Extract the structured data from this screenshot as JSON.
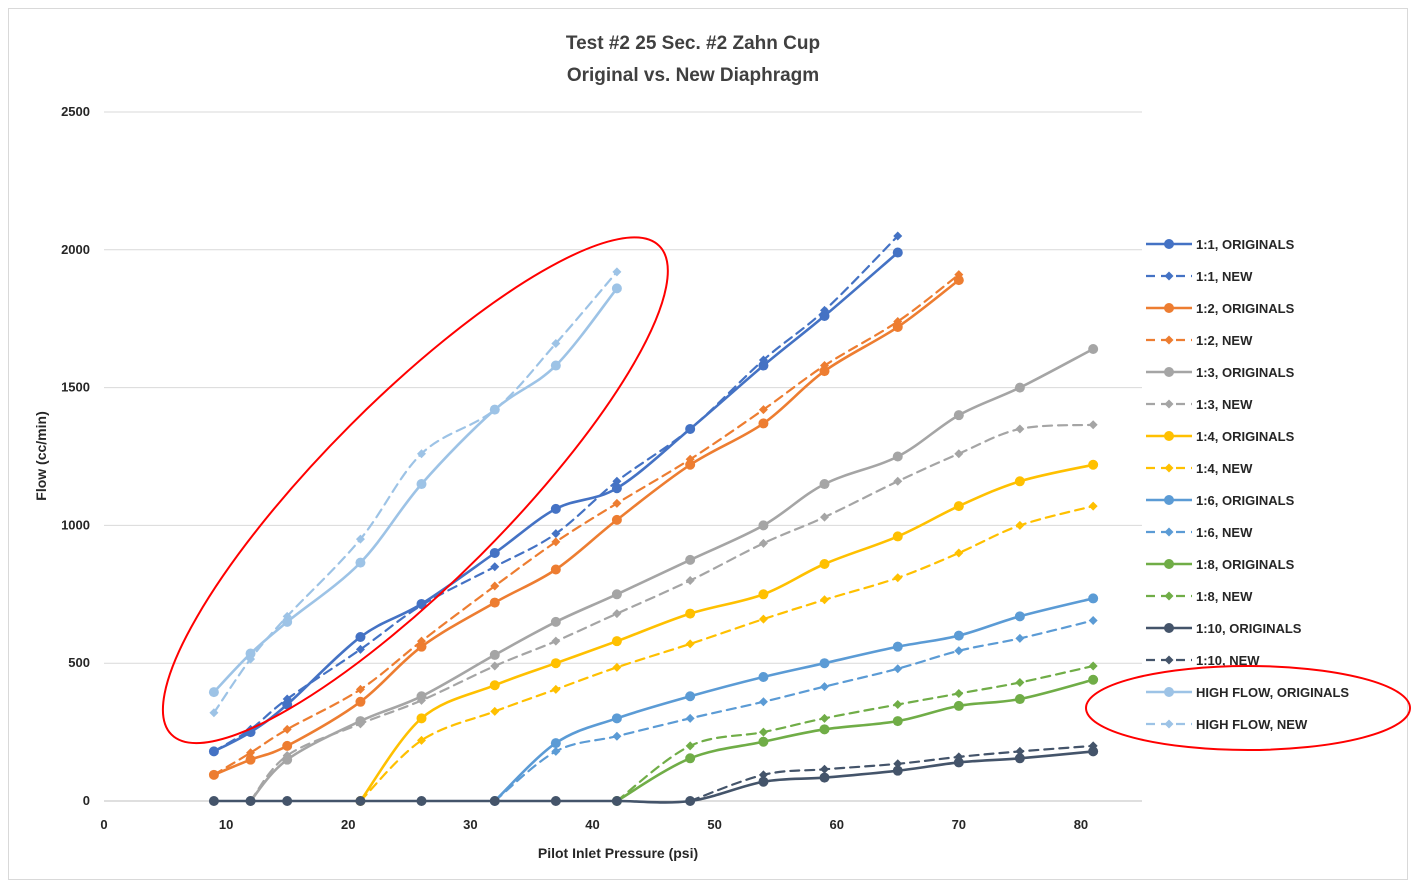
{
  "chart_data": {
    "type": "line",
    "title": [
      "Test #2 25 Sec. #2 Zahn Cup",
      "Original vs. New Diaphragm"
    ],
    "xlabel": "Pilot Inlet Pressure (psi)",
    "ylabel": "Flow (cc/min)",
    "xlim": [
      0,
      85
    ],
    "ylim": [
      0,
      2500
    ],
    "xticks": [
      0,
      10,
      20,
      30,
      40,
      50,
      60,
      70,
      80
    ],
    "yticks": [
      0,
      500,
      1000,
      1500,
      2000,
      2500
    ],
    "grid": "horizontal",
    "legend_position": "right",
    "series": [
      {
        "name": "1:1, ORIGINALS",
        "color": "#4472C4",
        "dash": false,
        "points": [
          [
            9,
            180
          ],
          [
            12,
            250
          ],
          [
            15,
            350
          ],
          [
            21,
            595
          ],
          [
            26,
            715
          ],
          [
            32,
            900
          ],
          [
            37,
            1060
          ],
          [
            42,
            1135
          ],
          [
            48,
            1350
          ],
          [
            54,
            1580
          ],
          [
            59,
            1760
          ],
          [
            65,
            1990
          ]
        ]
      },
      {
        "name": "1:1, NEW",
        "color": "#4472C4",
        "dash": true,
        "points": [
          [
            9,
            180
          ],
          [
            12,
            260
          ],
          [
            15,
            370
          ],
          [
            21,
            550
          ],
          [
            26,
            710
          ],
          [
            32,
            850
          ],
          [
            37,
            970
          ],
          [
            42,
            1160
          ],
          [
            48,
            1350
          ],
          [
            54,
            1600
          ],
          [
            59,
            1780
          ],
          [
            65,
            2050
          ]
        ]
      },
      {
        "name": "1:2, ORIGINALS",
        "color": "#ED7D31",
        "dash": false,
        "points": [
          [
            9,
            95
          ],
          [
            12,
            150
          ],
          [
            15,
            200
          ],
          [
            21,
            360
          ],
          [
            26,
            560
          ],
          [
            32,
            720
          ],
          [
            37,
            840
          ],
          [
            42,
            1020
          ],
          [
            48,
            1220
          ],
          [
            54,
            1370
          ],
          [
            59,
            1560
          ],
          [
            65,
            1720
          ],
          [
            70,
            1890
          ]
        ]
      },
      {
        "name": "1:2, NEW",
        "color": "#ED7D31",
        "dash": true,
        "points": [
          [
            9,
            95
          ],
          [
            12,
            175
          ],
          [
            15,
            260
          ],
          [
            21,
            405
          ],
          [
            26,
            580
          ],
          [
            32,
            780
          ],
          [
            37,
            940
          ],
          [
            42,
            1080
          ],
          [
            48,
            1240
          ],
          [
            54,
            1420
          ],
          [
            59,
            1580
          ],
          [
            65,
            1740
          ],
          [
            70,
            1910
          ]
        ]
      },
      {
        "name": "1:3, ORIGINALS",
        "color": "#A5A5A5",
        "dash": false,
        "points": [
          [
            12,
            0
          ],
          [
            15,
            150
          ],
          [
            21,
            290
          ],
          [
            26,
            380
          ],
          [
            32,
            530
          ],
          [
            37,
            650
          ],
          [
            42,
            750
          ],
          [
            48,
            875
          ],
          [
            54,
            1000
          ],
          [
            59,
            1150
          ],
          [
            65,
            1250
          ],
          [
            70,
            1400
          ],
          [
            75,
            1500
          ],
          [
            81,
            1640
          ]
        ]
      },
      {
        "name": "1:3, NEW",
        "color": "#A5A5A5",
        "dash": true,
        "points": [
          [
            12,
            0
          ],
          [
            15,
            165
          ],
          [
            21,
            280
          ],
          [
            26,
            365
          ],
          [
            32,
            490
          ],
          [
            37,
            580
          ],
          [
            42,
            680
          ],
          [
            48,
            800
          ],
          [
            54,
            935
          ],
          [
            59,
            1030
          ],
          [
            65,
            1160
          ],
          [
            70,
            1260
          ],
          [
            75,
            1350
          ],
          [
            81,
            1365
          ]
        ]
      },
      {
        "name": "1:4, ORIGINALS",
        "color": "#FFC000",
        "dash": false,
        "points": [
          [
            21,
            0
          ],
          [
            26,
            300
          ],
          [
            32,
            420
          ],
          [
            37,
            500
          ],
          [
            42,
            580
          ],
          [
            48,
            680
          ],
          [
            54,
            750
          ],
          [
            59,
            860
          ],
          [
            65,
            960
          ],
          [
            70,
            1070
          ],
          [
            75,
            1160
          ],
          [
            81,
            1220
          ]
        ]
      },
      {
        "name": "1:4, NEW",
        "color": "#FFC000",
        "dash": true,
        "points": [
          [
            21,
            0
          ],
          [
            26,
            220
          ],
          [
            32,
            325
          ],
          [
            37,
            405
          ],
          [
            42,
            485
          ],
          [
            48,
            570
          ],
          [
            54,
            660
          ],
          [
            59,
            730
          ],
          [
            65,
            810
          ],
          [
            70,
            900
          ],
          [
            75,
            1000
          ],
          [
            81,
            1070
          ]
        ]
      },
      {
        "name": "1:6, ORIGINALS",
        "color": "#5B9BD5",
        "dash": false,
        "points": [
          [
            32,
            0
          ],
          [
            37,
            210
          ],
          [
            42,
            300
          ],
          [
            48,
            380
          ],
          [
            54,
            450
          ],
          [
            59,
            500
          ],
          [
            65,
            560
          ],
          [
            70,
            600
          ],
          [
            75,
            670
          ],
          [
            81,
            735
          ]
        ]
      },
      {
        "name": "1:6, NEW",
        "color": "#5B9BD5",
        "dash": true,
        "points": [
          [
            32,
            0
          ],
          [
            37,
            180
          ],
          [
            42,
            235
          ],
          [
            48,
            300
          ],
          [
            54,
            360
          ],
          [
            59,
            415
          ],
          [
            65,
            480
          ],
          [
            70,
            545
          ],
          [
            75,
            590
          ],
          [
            81,
            655
          ]
        ]
      },
      {
        "name": "1:8, ORIGINALS",
        "color": "#70AD47",
        "dash": false,
        "points": [
          [
            42,
            0
          ],
          [
            48,
            155
          ],
          [
            54,
            215
          ],
          [
            59,
            260
          ],
          [
            65,
            290
          ],
          [
            70,
            345
          ],
          [
            75,
            370
          ],
          [
            81,
            440
          ]
        ]
      },
      {
        "name": "1:8, NEW",
        "color": "#70AD47",
        "dash": true,
        "points": [
          [
            42,
            0
          ],
          [
            48,
            200
          ],
          [
            54,
            250
          ],
          [
            59,
            300
          ],
          [
            65,
            350
          ],
          [
            70,
            390
          ],
          [
            75,
            430
          ],
          [
            81,
            490
          ]
        ]
      },
      {
        "name": "1:10, ORIGINALS",
        "color": "#44546A",
        "dash": false,
        "points": [
          [
            9,
            0
          ],
          [
            12,
            0
          ],
          [
            15,
            0
          ],
          [
            21,
            0
          ],
          [
            26,
            0
          ],
          [
            32,
            0
          ],
          [
            37,
            0
          ],
          [
            42,
            0
          ],
          [
            48,
            0
          ],
          [
            54,
            70
          ],
          [
            59,
            85
          ],
          [
            65,
            110
          ],
          [
            70,
            140
          ],
          [
            75,
            155
          ],
          [
            81,
            180
          ]
        ]
      },
      {
        "name": "1:10, NEW",
        "color": "#44546A",
        "dash": true,
        "points": [
          [
            48,
            0
          ],
          [
            54,
            95
          ],
          [
            59,
            115
          ],
          [
            65,
            135
          ],
          [
            70,
            160
          ],
          [
            75,
            180
          ],
          [
            81,
            200
          ]
        ]
      },
      {
        "name": "HIGH FLOW, ORIGINALS",
        "color": "#9DC3E6",
        "dash": false,
        "points": [
          [
            9,
            395
          ],
          [
            12,
            535
          ],
          [
            15,
            650
          ],
          [
            21,
            865
          ],
          [
            26,
            1150
          ],
          [
            32,
            1420
          ],
          [
            37,
            1580
          ],
          [
            42,
            1860
          ]
        ]
      },
      {
        "name": "HIGH FLOW, NEW",
        "color": "#9DC3E6",
        "dash": true,
        "points": [
          [
            9,
            320
          ],
          [
            12,
            515
          ],
          [
            15,
            670
          ],
          [
            21,
            950
          ],
          [
            26,
            1260
          ],
          [
            32,
            1420
          ],
          [
            37,
            1660
          ],
          [
            42,
            1920
          ]
        ]
      }
    ],
    "annotations": [
      {
        "type": "ellipse",
        "color": "#FF0000",
        "target": "HIGH FLOW series"
      },
      {
        "type": "ellipse",
        "color": "#FF0000",
        "target": "HIGH FLOW legend entries"
      }
    ]
  }
}
